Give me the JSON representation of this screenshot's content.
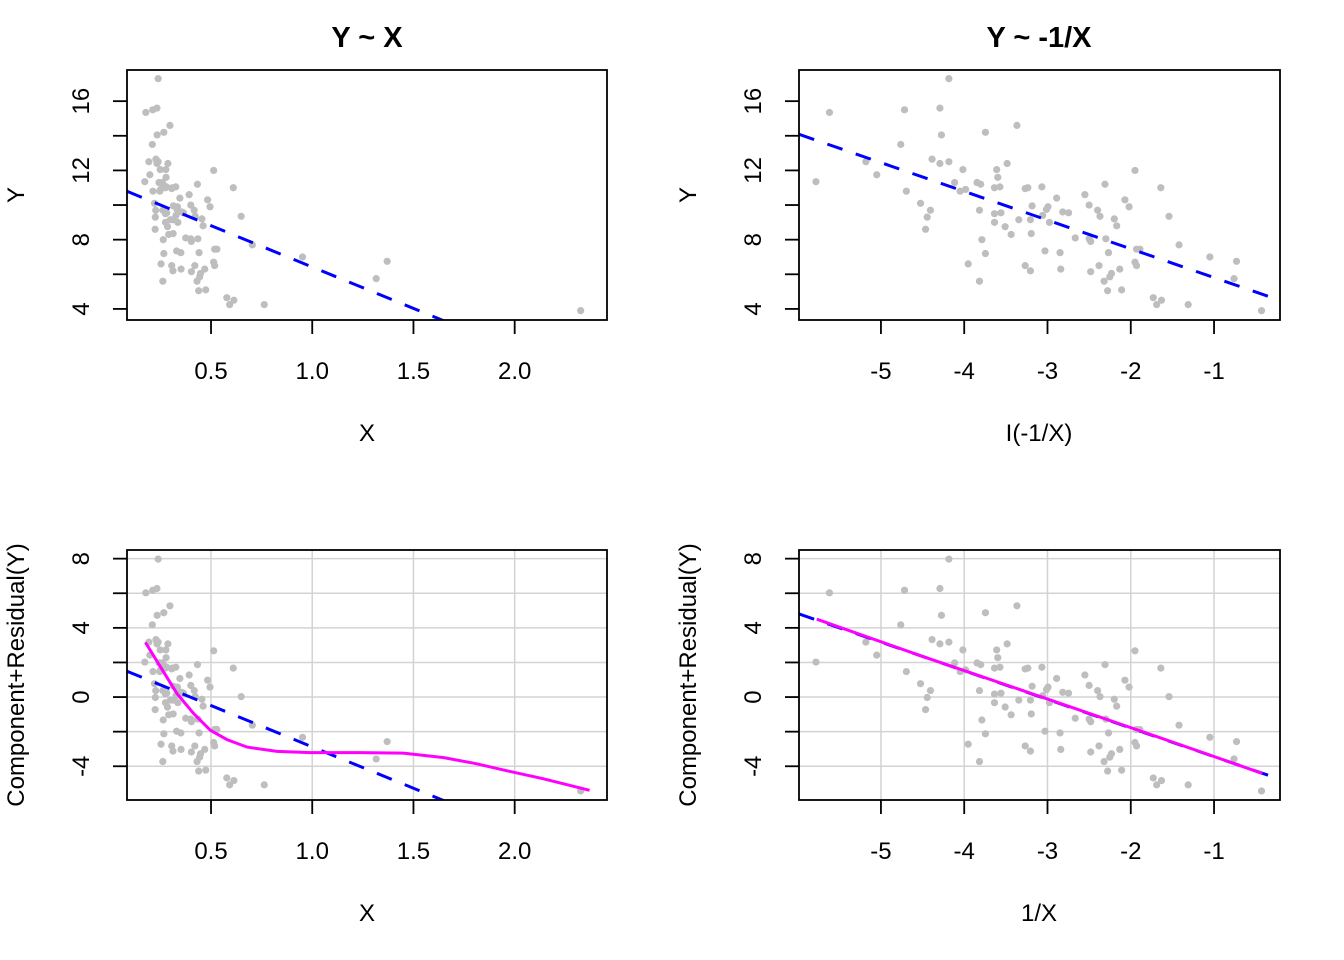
{
  "chart_data": {
    "type": "scatter",
    "colors": {
      "points": "#bebebe",
      "fit_line": "#0000ff",
      "smooth": "#ff00ff",
      "grid": "#d3d3d3",
      "axes": "#000000"
    },
    "data": {
      "X": [
        0.239,
        0.178,
        0.212,
        0.233,
        0.267,
        0.297,
        0.234,
        0.21,
        0.193,
        0.198,
        0.173,
        0.228,
        0.233,
        0.239,
        0.249,
        0.277,
        0.287,
        0.278,
        0.243,
        0.26,
        0.263,
        0.275,
        0.28,
        0.213,
        0.247,
        0.251,
        0.306,
        0.309,
        0.326,
        0.221,
        0.227,
        0.225,
        0.224,
        0.262,
        0.275,
        0.281,
        0.275,
        0.285,
        0.291,
        0.299,
        0.314,
        0.312,
        0.313,
        0.33,
        0.327,
        0.334,
        0.336,
        0.264,
        0.267,
        0.253,
        0.262,
        0.306,
        0.312,
        0.513,
        0.433,
        0.61,
        0.346,
        0.392,
        0.483,
        0.495,
        0.4,
        0.332,
        0.355,
        0.364,
        0.417,
        0.422,
        0.455,
        0.461,
        0.649,
        0.375,
        0.4,
        0.403,
        0.435,
        0.351,
        0.441,
        0.518,
        0.529,
        0.704,
        0.952,
        1.37,
        1.316,
        0.352,
        0.403,
        0.42,
        0.448,
        0.444,
        0.431,
        0.469,
        0.513,
        0.518,
        0.439,
        0.474,
        0.578,
        0.613,
        0.592,
        0.763,
        2.326
      ],
      "Y": [
        17.3,
        15.35,
        15.5,
        15.6,
        14.2,
        14.6,
        14.05,
        13.5,
        12.5,
        11.75,
        11.35,
        12.65,
        12.4,
        12.5,
        12.05,
        12.05,
        12.4,
        11.6,
        11.3,
        11.3,
        11.2,
        11.0,
        11.05,
        10.8,
        10.8,
        10.9,
        10.95,
        11.0,
        11.05,
        10.1,
        9.7,
        9.3,
        8.6,
        9.7,
        9.5,
        9.55,
        9.0,
        8.75,
        8.3,
        9.15,
        9.95,
        9.15,
        8.35,
        7.35,
        9.4,
        9.9,
        9.0,
        8.0,
        7.2,
        6.6,
        5.6,
        6.5,
        6.2,
        12.0,
        11.2,
        11.0,
        10.4,
        10.6,
        10.3,
        9.9,
        10.0,
        9.75,
        9.6,
        9.55,
        9.7,
        9.35,
        9.2,
        8.8,
        9.35,
        8.1,
        8.05,
        7.9,
        8.05,
        7.25,
        7.25,
        7.45,
        7.45,
        7.7,
        7.0,
        6.75,
        5.75,
        6.3,
        6.15,
        6.5,
        6.05,
        5.85,
        5.6,
        6.3,
        6.7,
        6.5,
        5.05,
        5.1,
        4.65,
        4.5,
        4.25,
        4.25,
        3.9
      ]
    },
    "panels": [
      {
        "id": "top-left",
        "title": "Y ~ X",
        "xlabel": "X",
        "ylabel": "Y",
        "x_var": "X",
        "y_var": "Y",
        "xlim": [
          0.085,
          2.456
        ],
        "ylim": [
          3.36,
          17.8
        ],
        "xticks": [
          0.5,
          1.0,
          1.5,
          2.0
        ],
        "xtick_labels": [
          "0.5",
          "1.0",
          "1.5",
          "2.0"
        ],
        "yticks": [
          4,
          6,
          8,
          10,
          12,
          14,
          16
        ],
        "ytick_labels": [
          "4",
          "",
          "8",
          "",
          "12",
          "",
          "16"
        ],
        "grid": false,
        "fit_line": {
          "intercept": 11.2,
          "slope": -4.78
        },
        "smooth": null
      },
      {
        "id": "top-right",
        "title": "Y ~ -1/X",
        "xlabel": "I(-1/X)",
        "ylabel": "Y",
        "x_var": "-1/X",
        "y_var": "Y",
        "xlim": [
          -5.984,
          -0.208
        ],
        "ylim": [
          3.36,
          17.8
        ],
        "xticks": [
          -5,
          -4,
          -3,
          -2,
          -1
        ],
        "xtick_labels": [
          "-5",
          "-4",
          "-3",
          "-2",
          "-1"
        ],
        "yticks": [
          4,
          6,
          8,
          10,
          12,
          14,
          16
        ],
        "ytick_labels": [
          "4",
          "",
          "8",
          "",
          "12",
          "",
          "16"
        ],
        "grid": false,
        "fit_line": {
          "intercept": 4.15,
          "slope": -1.66
        },
        "smooth": null
      },
      {
        "id": "bottom-left",
        "title": "",
        "xlabel": "X",
        "ylabel": "Component+Residual(Y)",
        "x_var": "X",
        "y_var": "Component+Residual(Y)",
        "xlim": [
          0.085,
          2.456
        ],
        "ylim": [
          -5.95,
          8.5
        ],
        "xticks": [
          0.5,
          1.0,
          1.5,
          2.0
        ],
        "xtick_labels": [
          "0.5",
          "1.0",
          "1.5",
          "2.0"
        ],
        "yticks": [
          -4,
          -2,
          0,
          2,
          4,
          6,
          8
        ],
        "ytick_labels": [
          "-4",
          "",
          "0",
          "",
          "4",
          "",
          "8"
        ],
        "grid": true,
        "fit_line": {
          "intercept": 1.9,
          "slope": -4.78
        },
        "smooth": {
          "x": [
            0.176,
            0.25,
            0.332,
            0.415,
            0.497,
            0.579,
            0.678,
            0.826,
            0.99,
            1.237,
            1.45,
            1.65,
            1.81,
            1.98,
            2.14,
            2.37
          ],
          "y": [
            3.16,
            1.75,
            0.2,
            -0.96,
            -1.92,
            -2.46,
            -2.89,
            -3.14,
            -3.21,
            -3.21,
            -3.24,
            -3.5,
            -3.85,
            -4.31,
            -4.72,
            -5.39
          ]
        }
      },
      {
        "id": "bottom-right",
        "title": "",
        "xlabel": "1/X",
        "ylabel": "Component+Residual(Y)",
        "x_var": "-1/X",
        "y_var": "Component+Residual(Y)",
        "xlim": [
          -5.984,
          -0.208
        ],
        "ylim": [
          -5.95,
          8.5
        ],
        "xticks": [
          -5,
          -4,
          -3,
          -2,
          -1
        ],
        "xtick_labels": [
          "-5",
          "-4",
          "-3",
          "-2",
          "-1"
        ],
        "yticks": [
          -4,
          -2,
          0,
          2,
          4,
          6,
          8
        ],
        "ytick_labels": [
          "-4",
          "",
          "0",
          "",
          "4",
          "",
          "8"
        ],
        "grid": true,
        "fit_line": {
          "intercept": -5.1,
          "slope": -1.655
        },
        "smooth": {
          "x": [
            -5.77,
            -4.5,
            -3.02,
            -1.5,
            -0.42
          ],
          "y": [
            4.5,
            2.35,
            -0.08,
            -2.6,
            -4.41
          ]
        }
      }
    ]
  }
}
